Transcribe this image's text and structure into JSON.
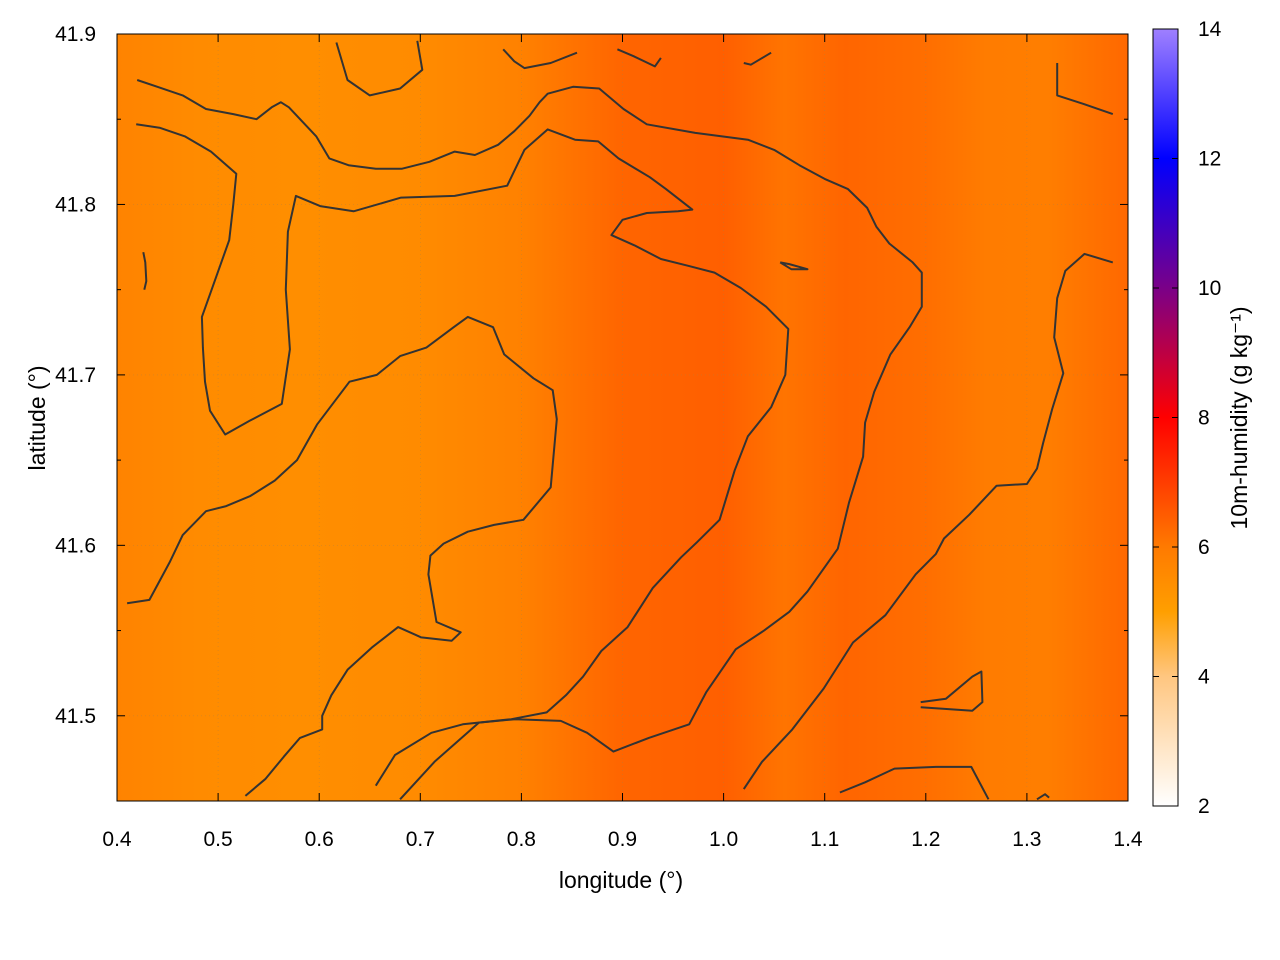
{
  "chart_data": {
    "type": "heatmap",
    "title": "",
    "xlabel": "longitude (°)",
    "ylabel": "latitude (°)",
    "colorbar_label": "10m-humidity (g kg⁻¹)",
    "xlim": [
      0.4,
      1.4
    ],
    "ylim": [
      41.45,
      41.9
    ],
    "clim": [
      2,
      14
    ],
    "x_ticks": [
      0.4,
      0.5,
      0.6,
      0.7,
      0.8,
      0.9,
      1.0,
      1.1,
      1.2,
      1.3,
      1.4
    ],
    "x_tick_labels": [
      "0.4",
      "0.5",
      "0.6",
      "0.7",
      "0.8",
      "0.9",
      "1.0",
      "1.1",
      "1.2",
      "1.3",
      "1.4"
    ],
    "y_ticks": [
      41.5,
      41.6,
      41.7,
      41.8,
      41.9
    ],
    "y_tick_labels": [
      "41.5",
      "41.6",
      "41.7",
      "41.8",
      "41.9"
    ],
    "colorbar_ticks": [
      2,
      4,
      6,
      8,
      10,
      12,
      14
    ],
    "colorbar_tick_labels": [
      "2",
      "4",
      "6",
      "8",
      "10",
      "12",
      "14"
    ],
    "grid": true,
    "colormap": [
      {
        "value": 2,
        "color": "#ffffff"
      },
      {
        "value": 4,
        "color": "#ffc680"
      },
      {
        "value": 5,
        "color": "#ff9f00"
      },
      {
        "value": 6,
        "color": "#ff7a00"
      },
      {
        "value": 8,
        "color": "#ff0000"
      },
      {
        "value": 10,
        "color": "#7a0088"
      },
      {
        "value": 12,
        "color": "#0000ff"
      },
      {
        "value": 14,
        "color": "#9f80ff"
      }
    ],
    "field_profile": {
      "x": [
        0.4,
        0.48,
        0.58,
        0.7,
        0.8,
        0.9,
        1.0,
        1.06,
        1.12,
        1.2,
        1.26,
        1.32,
        1.4
      ],
      "humidity": [
        5.75,
        5.55,
        5.45,
        5.55,
        5.8,
        6.35,
        6.45,
        6.1,
        6.35,
        6.2,
        5.95,
        5.9,
        6.3
      ]
    },
    "contour_lines": [
      [
        [
          0.42,
          41.873
        ],
        [
          0.44,
          41.869
        ],
        [
          0.465,
          41.864
        ],
        [
          0.488,
          41.856
        ],
        [
          0.515,
          41.853
        ],
        [
          0.538,
          41.85
        ],
        [
          0.553,
          41.857
        ],
        [
          0.562,
          41.86
        ],
        [
          0.57,
          41.857
        ],
        [
          0.597,
          41.84
        ],
        [
          0.61,
          41.827
        ],
        [
          0.629,
          41.823
        ],
        [
          0.656,
          41.821
        ],
        [
          0.682,
          41.821
        ],
        [
          0.709,
          41.825
        ],
        [
          0.734,
          41.831
        ],
        [
          0.754,
          41.829
        ],
        [
          0.777,
          41.835
        ],
        [
          0.793,
          41.843
        ],
        [
          0.808,
          41.852
        ],
        [
          0.818,
          41.86
        ],
        [
          0.826,
          41.865
        ],
        [
          0.851,
          41.869
        ],
        [
          0.877,
          41.868
        ],
        [
          0.901,
          41.856
        ],
        [
          0.924,
          41.847
        ],
        [
          0.972,
          41.842
        ],
        [
          1.024,
          41.838
        ],
        [
          1.05,
          41.832
        ],
        [
          1.075,
          41.823
        ],
        [
          1.1,
          41.815
        ],
        [
          1.123,
          41.809
        ],
        [
          1.142,
          41.798
        ],
        [
          1.151,
          41.787
        ],
        [
          1.164,
          41.777
        ],
        [
          1.187,
          41.766
        ],
        [
          1.196,
          41.76
        ],
        [
          1.196,
          41.74
        ],
        [
          1.184,
          41.728
        ],
        [
          1.165,
          41.712
        ],
        [
          1.149,
          41.69
        ],
        [
          1.14,
          41.672
        ],
        [
          1.138,
          41.652
        ],
        [
          1.124,
          41.625
        ],
        [
          1.113,
          41.598
        ],
        [
          1.083,
          41.573
        ],
        [
          1.065,
          41.561
        ],
        [
          1.04,
          41.55
        ],
        [
          1.012,
          41.539
        ],
        [
          0.983,
          41.514
        ],
        [
          0.966,
          41.495
        ],
        [
          0.926,
          41.487
        ],
        [
          0.891,
          41.479
        ],
        [
          0.865,
          41.49
        ],
        [
          0.839,
          41.497
        ],
        [
          0.794,
          41.498
        ],
        [
          0.758,
          41.496
        ],
        [
          0.714,
          41.473
        ],
        [
          0.68,
          41.451
        ]
      ],
      [
        [
          0.419,
          41.847
        ],
        [
          0.442,
          41.845
        ],
        [
          0.467,
          41.84
        ],
        [
          0.493,
          41.831
        ],
        [
          0.518,
          41.818
        ],
        [
          0.515,
          41.8
        ],
        [
          0.511,
          41.779
        ],
        [
          0.493,
          41.749
        ],
        [
          0.484,
          41.734
        ],
        [
          0.485,
          41.716
        ],
        [
          0.487,
          41.696
        ],
        [
          0.492,
          41.679
        ],
        [
          0.507,
          41.665
        ],
        [
          0.531,
          41.673
        ],
        [
          0.563,
          41.683
        ],
        [
          0.571,
          41.715
        ],
        [
          0.567,
          41.75
        ],
        [
          0.569,
          41.784
        ],
        [
          0.577,
          41.805
        ],
        [
          0.601,
          41.799
        ],
        [
          0.634,
          41.796
        ],
        [
          0.681,
          41.804
        ],
        [
          0.734,
          41.805
        ],
        [
          0.786,
          41.811
        ],
        [
          0.803,
          41.832
        ],
        [
          0.826,
          41.844
        ],
        [
          0.853,
          41.838
        ],
        [
          0.876,
          41.837
        ],
        [
          0.896,
          41.827
        ],
        [
          0.927,
          41.816
        ],
        [
          0.943,
          41.809
        ],
        [
          0.969,
          41.797
        ],
        [
          0.955,
          41.796
        ],
        [
          0.924,
          41.795
        ],
        [
          0.9,
          41.791
        ],
        [
          0.889,
          41.782
        ],
        [
          0.912,
          41.776
        ],
        [
          0.938,
          41.768
        ],
        [
          0.965,
          41.764
        ],
        [
          0.991,
          41.76
        ],
        [
          1.017,
          41.751
        ],
        [
          1.042,
          41.74
        ],
        [
          1.064,
          41.727
        ],
        [
          1.061,
          41.7
        ],
        [
          1.047,
          41.681
        ],
        [
          1.024,
          41.664
        ],
        [
          1.011,
          41.644
        ],
        [
          0.996,
          41.615
        ],
        [
          0.974,
          41.602
        ],
        [
          0.958,
          41.593
        ],
        [
          0.93,
          41.575
        ],
        [
          0.905,
          41.552
        ],
        [
          0.879,
          41.538
        ],
        [
          0.861,
          41.523
        ],
        [
          0.844,
          41.512
        ],
        [
          0.825,
          41.502
        ],
        [
          0.79,
          41.498
        ],
        [
          0.742,
          41.495
        ],
        [
          0.711,
          41.49
        ],
        [
          0.675,
          41.477
        ],
        [
          0.656,
          41.459
        ]
      ],
      [
        [
          0.41,
          41.566
        ],
        [
          0.432,
          41.568
        ],
        [
          0.452,
          41.59
        ],
        [
          0.465,
          41.606
        ],
        [
          0.488,
          41.62
        ],
        [
          0.508,
          41.623
        ],
        [
          0.532,
          41.629
        ],
        [
          0.556,
          41.638
        ],
        [
          0.578,
          41.65
        ],
        [
          0.598,
          41.671
        ],
        [
          0.63,
          41.696
        ],
        [
          0.657,
          41.7
        ],
        [
          0.68,
          41.711
        ],
        [
          0.706,
          41.716
        ],
        [
          0.733,
          41.728
        ],
        [
          0.747,
          41.734
        ],
        [
          0.772,
          41.728
        ],
        [
          0.783,
          41.712
        ],
        [
          0.812,
          41.698
        ],
        [
          0.831,
          41.691
        ],
        [
          0.835,
          41.674
        ],
        [
          0.829,
          41.634
        ],
        [
          0.802,
          41.615
        ],
        [
          0.773,
          41.612
        ],
        [
          0.747,
          41.608
        ],
        [
          0.723,
          41.601
        ],
        [
          0.71,
          41.594
        ],
        [
          0.708,
          41.583
        ],
        [
          0.716,
          41.555
        ],
        [
          0.74,
          41.549
        ],
        [
          0.731,
          41.544
        ],
        [
          0.701,
          41.546
        ],
        [
          0.678,
          41.552
        ],
        [
          0.652,
          41.54
        ],
        [
          0.628,
          41.527
        ],
        [
          0.612,
          41.512
        ],
        [
          0.603,
          41.5
        ],
        [
          0.603,
          41.492
        ],
        [
          0.581,
          41.487
        ],
        [
          0.565,
          41.476
        ],
        [
          0.547,
          41.463
        ],
        [
          0.527,
          41.453
        ]
      ],
      [
        [
          0.426,
          41.772
        ],
        [
          0.428,
          41.766
        ],
        [
          0.429,
          41.755
        ],
        [
          0.427,
          41.75
        ]
      ],
      [
        [
          0.617,
          41.895
        ],
        [
          0.628,
          41.873
        ],
        [
          0.65,
          41.864
        ],
        [
          0.68,
          41.868
        ],
        [
          0.702,
          41.879
        ],
        [
          0.697,
          41.896
        ]
      ],
      [
        [
          0.782,
          41.891
        ],
        [
          0.793,
          41.884
        ],
        [
          0.803,
          41.88
        ],
        [
          0.829,
          41.883
        ],
        [
          0.855,
          41.889
        ]
      ],
      [
        [
          0.895,
          41.891
        ],
        [
          0.911,
          41.887
        ],
        [
          0.932,
          41.881
        ],
        [
          0.938,
          41.886
        ]
      ],
      [
        [
          1.02,
          41.883
        ],
        [
          1.027,
          41.882
        ],
        [
          1.047,
          41.889
        ]
      ],
      [
        [
          1.056,
          41.766
        ],
        [
          1.065,
          41.765
        ],
        [
          1.083,
          41.762
        ],
        [
          1.067,
          41.762
        ],
        [
          1.056,
          41.766
        ]
      ],
      [
        [
          1.33,
          41.883
        ],
        [
          1.33,
          41.864
        ],
        [
          1.356,
          41.859
        ],
        [
          1.385,
          41.853
        ]
      ],
      [
        [
          1.385,
          41.766
        ],
        [
          1.357,
          41.771
        ],
        [
          1.338,
          41.761
        ],
        [
          1.33,
          41.745
        ],
        [
          1.327,
          41.722
        ],
        [
          1.336,
          41.701
        ],
        [
          1.325,
          41.68
        ],
        [
          1.316,
          41.66
        ],
        [
          1.31,
          41.645
        ],
        [
          1.3,
          41.636
        ],
        [
          1.27,
          41.635
        ],
        [
          1.243,
          41.618
        ],
        [
          1.218,
          41.604
        ],
        [
          1.21,
          41.595
        ],
        [
          1.19,
          41.583
        ],
        [
          1.16,
          41.559
        ],
        [
          1.128,
          41.543
        ],
        [
          1.099,
          41.516
        ],
        [
          1.068,
          41.492
        ],
        [
          1.038,
          41.473
        ],
        [
          1.02,
          41.457
        ]
      ],
      [
        [
          1.115,
          41.455
        ],
        [
          1.14,
          41.461
        ],
        [
          1.169,
          41.469
        ],
        [
          1.21,
          41.47
        ],
        [
          1.245,
          41.47
        ],
        [
          1.262,
          41.451
        ]
      ],
      [
        [
          1.195,
          41.508
        ],
        [
          1.22,
          41.51
        ],
        [
          1.246,
          41.523
        ],
        [
          1.255,
          41.526
        ],
        [
          1.256,
          41.508
        ],
        [
          1.246,
          41.503
        ],
        [
          1.195,
          41.505
        ]
      ],
      [
        [
          1.31,
          41.451
        ],
        [
          1.318,
          41.454
        ],
        [
          1.322,
          41.452
        ]
      ]
    ]
  }
}
